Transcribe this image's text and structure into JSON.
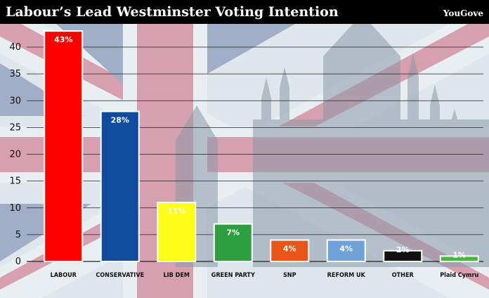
{
  "header": {
    "title": "Labour’s Lead Westminster Voting Intention",
    "source": "YouGove"
  },
  "colors": {
    "header_bg": "#000000",
    "background": "#dfe6ec",
    "flag_red": "#c8102e",
    "flag_blue": "#1f3d7a",
    "gridline": "#222222"
  },
  "chart_data": {
    "type": "bar",
    "title": "Labour’s Lead Westminster Voting Intention",
    "xlabel": "",
    "ylabel": "",
    "ylim": [
      0,
      45
    ],
    "yticks": [
      0,
      5,
      10,
      15,
      20,
      25,
      30,
      35,
      40
    ],
    "grid": true,
    "categories": [
      "LABOUR",
      "CONSERVATIVE",
      "LIB DEM",
      "GREEN PARTY",
      "SNP",
      "REFORM UK",
      "OTHER",
      "Plaid Cymru"
    ],
    "values": [
      43,
      28,
      11,
      7,
      4,
      4,
      2,
      1
    ],
    "data_labels": [
      "43%",
      "28%",
      "11%",
      "7%",
      "4%",
      "4%",
      "2%",
      "1%"
    ],
    "bar_colors": [
      "#ff0000",
      "#0f4c9e",
      "#ffff1a",
      "#2e9e3f",
      "#e8561a",
      "#6fa3d8",
      "#111111",
      "#44b93b"
    ]
  }
}
